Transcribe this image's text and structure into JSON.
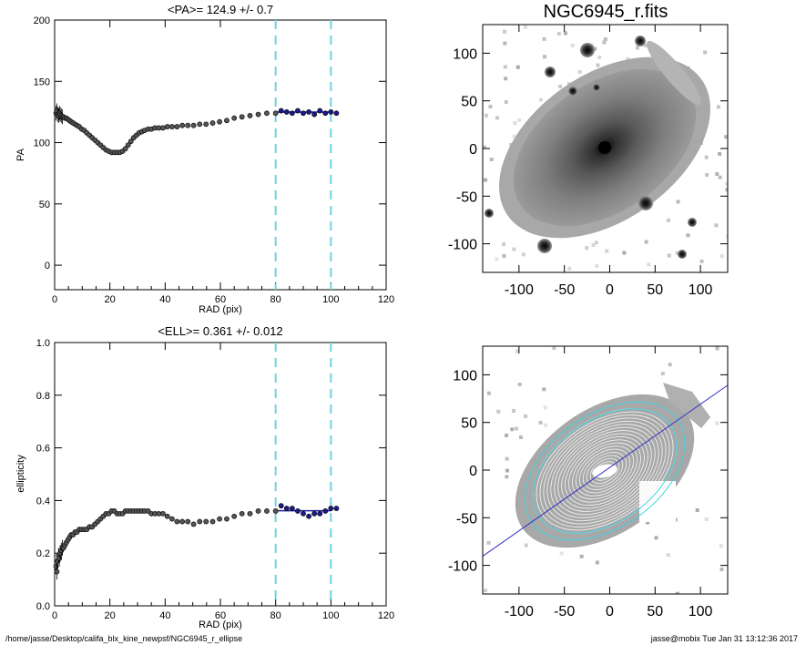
{
  "footer": {
    "path": "/home/jasse/Desktop/califa_blx_kine_newpsf/NGC6945_r_ellipse",
    "user_time": "jasse@mobix  Tue Jan 31 13:12:36 2017"
  },
  "chart_data": [
    {
      "type": "scatter",
      "title": "<PA>= 124.9 +/-   0.7",
      "xlabel": "RAD (pix)",
      "ylabel": "PA",
      "xlim": [
        0,
        120
      ],
      "ylim": [
        -20,
        200
      ],
      "xticks": [
        "0",
        "20",
        "40",
        "60",
        "80",
        "100",
        "120"
      ],
      "yticks": [
        "0",
        "50",
        "100",
        "150",
        "200"
      ],
      "vlines": [
        80,
        100
      ],
      "mean_line": 124.9,
      "series": [
        {
          "x": [
            0.5,
            0.8,
            1.1,
            1.4,
            1.7,
            2.0,
            2.4,
            2.8,
            3.2,
            3.7,
            4.2,
            4.8,
            5.4,
            6.0,
            6.7,
            7.4,
            8.1,
            8.9,
            9.8,
            10.7,
            11.6,
            12.6,
            13.6,
            14.6,
            15.6,
            16.6,
            17.6,
            18.6,
            19.6,
            20.6,
            21.6,
            22.6,
            23.6,
            24.6,
            25.6,
            26.6,
            27.6,
            28.6,
            29.6,
            30.6,
            31.6,
            32.6,
            33.8,
            35.0,
            36.3,
            37.7,
            39.2,
            40.8,
            42.5,
            44.3,
            46.2,
            48.2,
            50.3,
            52.5,
            54.8,
            57.2,
            59.7,
            62.3,
            65.0,
            67.8,
            70.7,
            73.7,
            76.8,
            80.0
          ],
          "y": [
            124,
            126,
            123,
            122,
            124,
            123,
            122,
            121,
            121,
            120,
            120,
            119,
            118,
            117,
            116,
            115,
            114,
            113,
            111,
            110,
            108,
            106,
            104,
            102,
            100,
            98,
            96,
            94,
            93,
            92,
            92,
            92,
            92,
            93,
            95,
            98,
            101,
            104,
            106,
            108,
            109,
            110,
            111,
            111,
            112,
            112,
            112,
            113,
            113,
            113,
            114,
            114,
            114,
            115,
            115,
            116,
            117,
            118,
            120,
            121,
            122,
            123,
            124,
            124
          ]
        },
        {
          "x": [
            82,
            84,
            86,
            88,
            90,
            92,
            94,
            96,
            98,
            100,
            102
          ],
          "y": [
            126,
            125,
            124,
            126,
            124,
            125,
            123,
            126,
            124,
            125,
            124
          ]
        }
      ]
    },
    {
      "type": "scatter",
      "title": "<ELL>= 0.361 +/-  0.012",
      "xlabel": "RAD (pix)",
      "ylabel": "ellipticity",
      "xlim": [
        0,
        120
      ],
      "ylim": [
        0,
        1
      ],
      "xticks": [
        "0",
        "20",
        "40",
        "60",
        "80",
        "100",
        "120"
      ],
      "yticks": [
        "0.0",
        "0.2",
        "0.4",
        "0.6",
        "0.8",
        "1.0"
      ],
      "vlines": [
        80,
        100
      ],
      "mean_line": 0.361,
      "series": [
        {
          "x": [
            0.5,
            0.8,
            1.1,
            1.4,
            1.7,
            2.0,
            2.4,
            2.8,
            3.2,
            3.7,
            4.2,
            4.8,
            5.4,
            6.0,
            6.7,
            7.4,
            8.1,
            8.9,
            9.8,
            10.7,
            11.6,
            12.6,
            13.6,
            14.6,
            15.6,
            16.6,
            17.6,
            18.6,
            19.6,
            20.6,
            21.6,
            22.6,
            23.6,
            24.6,
            25.6,
            26.6,
            27.6,
            28.6,
            29.6,
            30.6,
            31.6,
            32.6,
            33.8,
            35.0,
            36.3,
            37.7,
            39.2,
            40.8,
            42.5,
            44.3,
            46.2,
            48.2,
            50.3,
            52.5,
            54.8,
            57.2,
            59.7,
            62.3,
            65.0,
            67.8,
            70.7,
            73.7,
            76.8,
            80.0
          ],
          "y": [
            0.15,
            0.13,
            0.17,
            0.19,
            0.18,
            0.2,
            0.21,
            0.22,
            0.22,
            0.23,
            0.24,
            0.25,
            0.26,
            0.27,
            0.27,
            0.28,
            0.28,
            0.29,
            0.29,
            0.29,
            0.29,
            0.3,
            0.3,
            0.31,
            0.32,
            0.33,
            0.34,
            0.35,
            0.35,
            0.36,
            0.36,
            0.35,
            0.35,
            0.35,
            0.36,
            0.36,
            0.36,
            0.36,
            0.36,
            0.36,
            0.36,
            0.36,
            0.36,
            0.35,
            0.35,
            0.35,
            0.35,
            0.34,
            0.33,
            0.32,
            0.32,
            0.32,
            0.31,
            0.32,
            0.32,
            0.32,
            0.33,
            0.33,
            0.34,
            0.35,
            0.35,
            0.36,
            0.36,
            0.36
          ]
        },
        {
          "x": [
            82,
            84,
            86,
            88,
            90,
            92,
            94,
            96,
            98,
            100,
            102
          ],
          "y": [
            0.38,
            0.37,
            0.37,
            0.36,
            0.35,
            0.34,
            0.35,
            0.35,
            0.36,
            0.37,
            0.37
          ]
        }
      ]
    },
    {
      "type": "heatmap",
      "title": "NGC6945_r.fits",
      "xlim": [
        -140,
        130
      ],
      "ylim": [
        -130,
        130
      ],
      "xticks": [
        "-100",
        "-50",
        "0",
        "50",
        "100"
      ],
      "yticks": [
        "-100",
        "-50",
        "0",
        "50",
        "100"
      ]
    },
    {
      "type": "heatmap",
      "title": "",
      "xlim": [
        -140,
        130
      ],
      "ylim": [
        -130,
        130
      ],
      "xticks": [
        "-100",
        "-50",
        "0",
        "50",
        "100"
      ],
      "yticks": [
        "-100",
        "-50",
        "0",
        "50",
        "100"
      ],
      "pa_line_deg": 124.9,
      "mean_ellipticity": 0.361
    }
  ],
  "colors": {
    "inner_points": "#555555",
    "outer_points": "#1a1a8c",
    "dashed_lines": "#6fd3e0",
    "mean_line": "#2020a0",
    "cyan_ellipse": "#40d0e0",
    "pa_line": "#3030c8"
  }
}
